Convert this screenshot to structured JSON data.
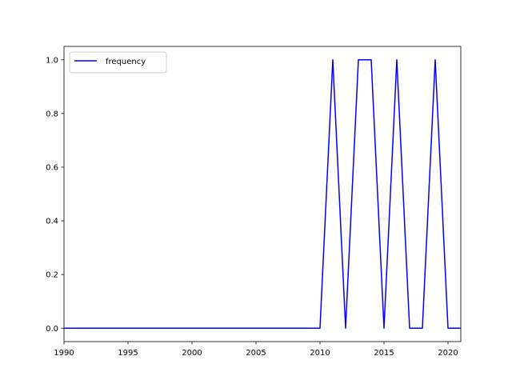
{
  "chart_data": {
    "type": "line",
    "title": "",
    "xlabel": "",
    "ylabel": "",
    "xlim": [
      1990,
      2021
    ],
    "ylim": [
      -0.05,
      1.05
    ],
    "x_ticks": [
      1990,
      1995,
      2000,
      2005,
      2010,
      2015,
      2020
    ],
    "y_ticks": [
      0.0,
      0.2,
      0.4,
      0.6,
      0.8,
      1.0
    ],
    "x_tick_labels": [
      "1990",
      "1995",
      "2000",
      "2005",
      "2010",
      "2015",
      "2020"
    ],
    "y_tick_labels": [
      "0.0",
      "0.2",
      "0.4",
      "0.6",
      "0.8",
      "1.0"
    ],
    "grid": false,
    "legend_position": "upper-left",
    "series": [
      {
        "name": "frequency",
        "color": "#0000ff",
        "x": [
          1990,
          1991,
          1992,
          1993,
          1994,
          1995,
          1996,
          1997,
          1998,
          1999,
          2000,
          2001,
          2002,
          2003,
          2004,
          2005,
          2006,
          2007,
          2008,
          2009,
          2010,
          2011,
          2012,
          2013,
          2014,
          2015,
          2016,
          2017,
          2018,
          2019,
          2020,
          2021
        ],
        "y": [
          0,
          0,
          0,
          0,
          0,
          0,
          0,
          0,
          0,
          0,
          0,
          0,
          0,
          0,
          0,
          0,
          0,
          0,
          0,
          0,
          0,
          1,
          0,
          1,
          1,
          0,
          1,
          0,
          0,
          1,
          0,
          0
        ]
      }
    ]
  }
}
